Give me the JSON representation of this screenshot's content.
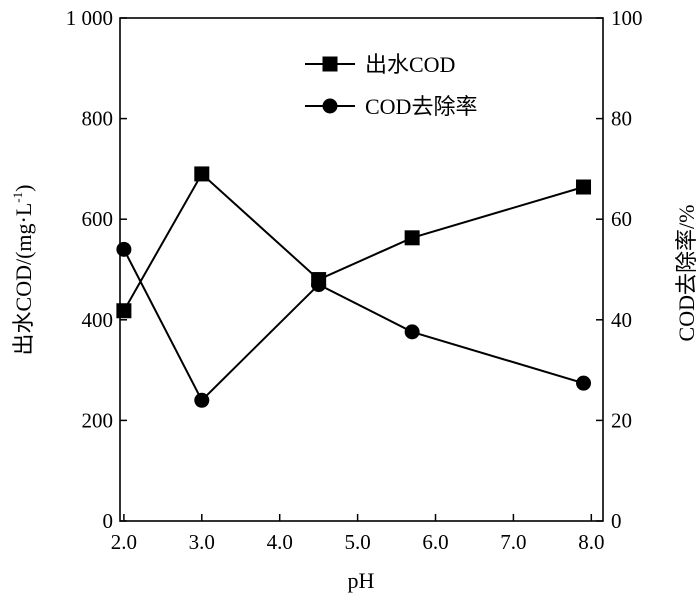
{
  "chart_data": {
    "type": "line",
    "xlabel": "pH",
    "ylabel_left": "出水COD/(mg·L",
    "ylabel_left_sup": "-1",
    "ylabel_left_close": ")",
    "ylabel_right": "COD去除率/%",
    "x_ticks": [
      "2.0",
      "3.0",
      "4.0",
      "5.0",
      "6.0",
      "7.0",
      "8.0"
    ],
    "x_tick_values": [
      2,
      3,
      4,
      5,
      6,
      7,
      8
    ],
    "y_left_ticks": [
      "0",
      "200",
      "400",
      "600",
      "800",
      "1 000"
    ],
    "y_left_tick_values": [
      0,
      200,
      400,
      600,
      800,
      1000
    ],
    "y_right_ticks": [
      "0",
      "20",
      "40",
      "60",
      "80",
      "100"
    ],
    "y_right_tick_values": [
      0,
      20,
      40,
      60,
      80,
      100
    ],
    "xlim": [
      1.95,
      8.15
    ],
    "ylim_left": [
      0,
      1000
    ],
    "ylim_right": [
      0,
      100
    ],
    "series": [
      {
        "name": "出水COD",
        "axis": "left",
        "marker": "square",
        "x": [
          2.0,
          3.0,
          4.5,
          5.7,
          7.9
        ],
        "values": [
          418,
          690,
          480,
          563,
          664
        ]
      },
      {
        "name": "COD去除率",
        "axis": "right",
        "marker": "circle",
        "x": [
          2.0,
          3.0,
          4.5,
          5.7,
          7.9
        ],
        "values": [
          54,
          24,
          47,
          37.6,
          27.4
        ]
      }
    ],
    "legend_position": "top-center",
    "grid": false
  }
}
